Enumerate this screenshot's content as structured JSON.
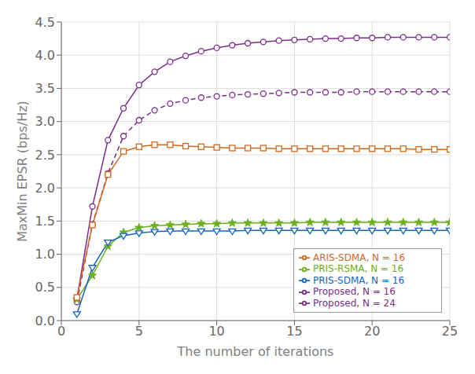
{
  "chart_data": {
    "type": "line",
    "xlabel": "The number of iterations",
    "ylabel": "MaxMin EPSR (bps/Hz)",
    "x": [
      1,
      2,
      3,
      4,
      5,
      6,
      7,
      8,
      9,
      10,
      11,
      12,
      13,
      14,
      15,
      16,
      17,
      18,
      19,
      20,
      21,
      22,
      23,
      24,
      25
    ],
    "xlim": [
      0,
      25
    ],
    "ylim": [
      0,
      4.5
    ],
    "xticks": [
      0,
      5,
      10,
      15,
      20,
      25
    ],
    "yticks": [
      {
        "value": 0,
        "label": "0.0"
      },
      0.5,
      {
        "value": 1.0,
        "label": "1.0"
      },
      1.5,
      {
        "value": 2.0,
        "label": "2.0"
      },
      2.5,
      {
        "value": 3.0,
        "label": "3.0"
      },
      3.5,
      {
        "value": 4.0,
        "label": "4.0"
      },
      4.5
    ],
    "grid": true,
    "legend": "lower right",
    "series": [
      {
        "name": "Proposed, N = 24",
        "color": "#7B2D8B",
        "marker": "circle",
        "line_style": "solid",
        "values": [
          0.32,
          1.72,
          2.72,
          3.2,
          3.55,
          3.75,
          3.9,
          3.99,
          4.06,
          4.11,
          4.15,
          4.18,
          4.2,
          4.22,
          4.23,
          4.24,
          4.25,
          4.25,
          4.26,
          4.26,
          4.27,
          4.27,
          4.27,
          4.27,
          4.27
        ]
      },
      {
        "name": "Proposed, N = 16",
        "color": "#7B2D8B",
        "marker": "circle",
        "line_style": "dashed",
        "values": [
          0.28,
          1.45,
          2.22,
          2.78,
          3.02,
          3.17,
          3.27,
          3.32,
          3.36,
          3.38,
          3.4,
          3.41,
          3.42,
          3.43,
          3.44,
          3.44,
          3.44,
          3.44,
          3.45,
          3.45,
          3.45,
          3.45,
          3.45,
          3.45,
          3.45
        ]
      },
      {
        "name": "PRIS-RSMA, N = 16",
        "color": "#6AAF1E",
        "marker": "star",
        "line_style": "solid",
        "values": [
          0.32,
          0.68,
          1.12,
          1.33,
          1.4,
          1.43,
          1.44,
          1.45,
          1.46,
          1.46,
          1.47,
          1.47,
          1.47,
          1.47,
          1.47,
          1.48,
          1.48,
          1.48,
          1.48,
          1.48,
          1.48,
          1.48,
          1.48,
          1.48,
          1.48
        ]
      },
      {
        "name": "ARIS-SDMA, N = 16",
        "color": "#D2691E",
        "marker": "square",
        "line_style": "solid",
        "values": [
          0.35,
          1.44,
          2.2,
          2.55,
          2.62,
          2.65,
          2.65,
          2.63,
          2.62,
          2.61,
          2.6,
          2.6,
          2.6,
          2.59,
          2.59,
          2.59,
          2.59,
          2.59,
          2.59,
          2.59,
          2.59,
          2.59,
          2.58,
          2.58,
          2.58
        ]
      },
      {
        "name": "PRIS-SDMA, N = 16",
        "color": "#1565C0",
        "marker": "triangle_down",
        "line_style": "solid",
        "values": [
          0.1,
          0.8,
          1.18,
          1.28,
          1.32,
          1.34,
          1.35,
          1.35,
          1.35,
          1.35,
          1.35,
          1.36,
          1.36,
          1.36,
          1.36,
          1.36,
          1.36,
          1.36,
          1.36,
          1.36,
          1.36,
          1.36,
          1.36,
          1.36,
          1.36
        ]
      }
    ]
  }
}
